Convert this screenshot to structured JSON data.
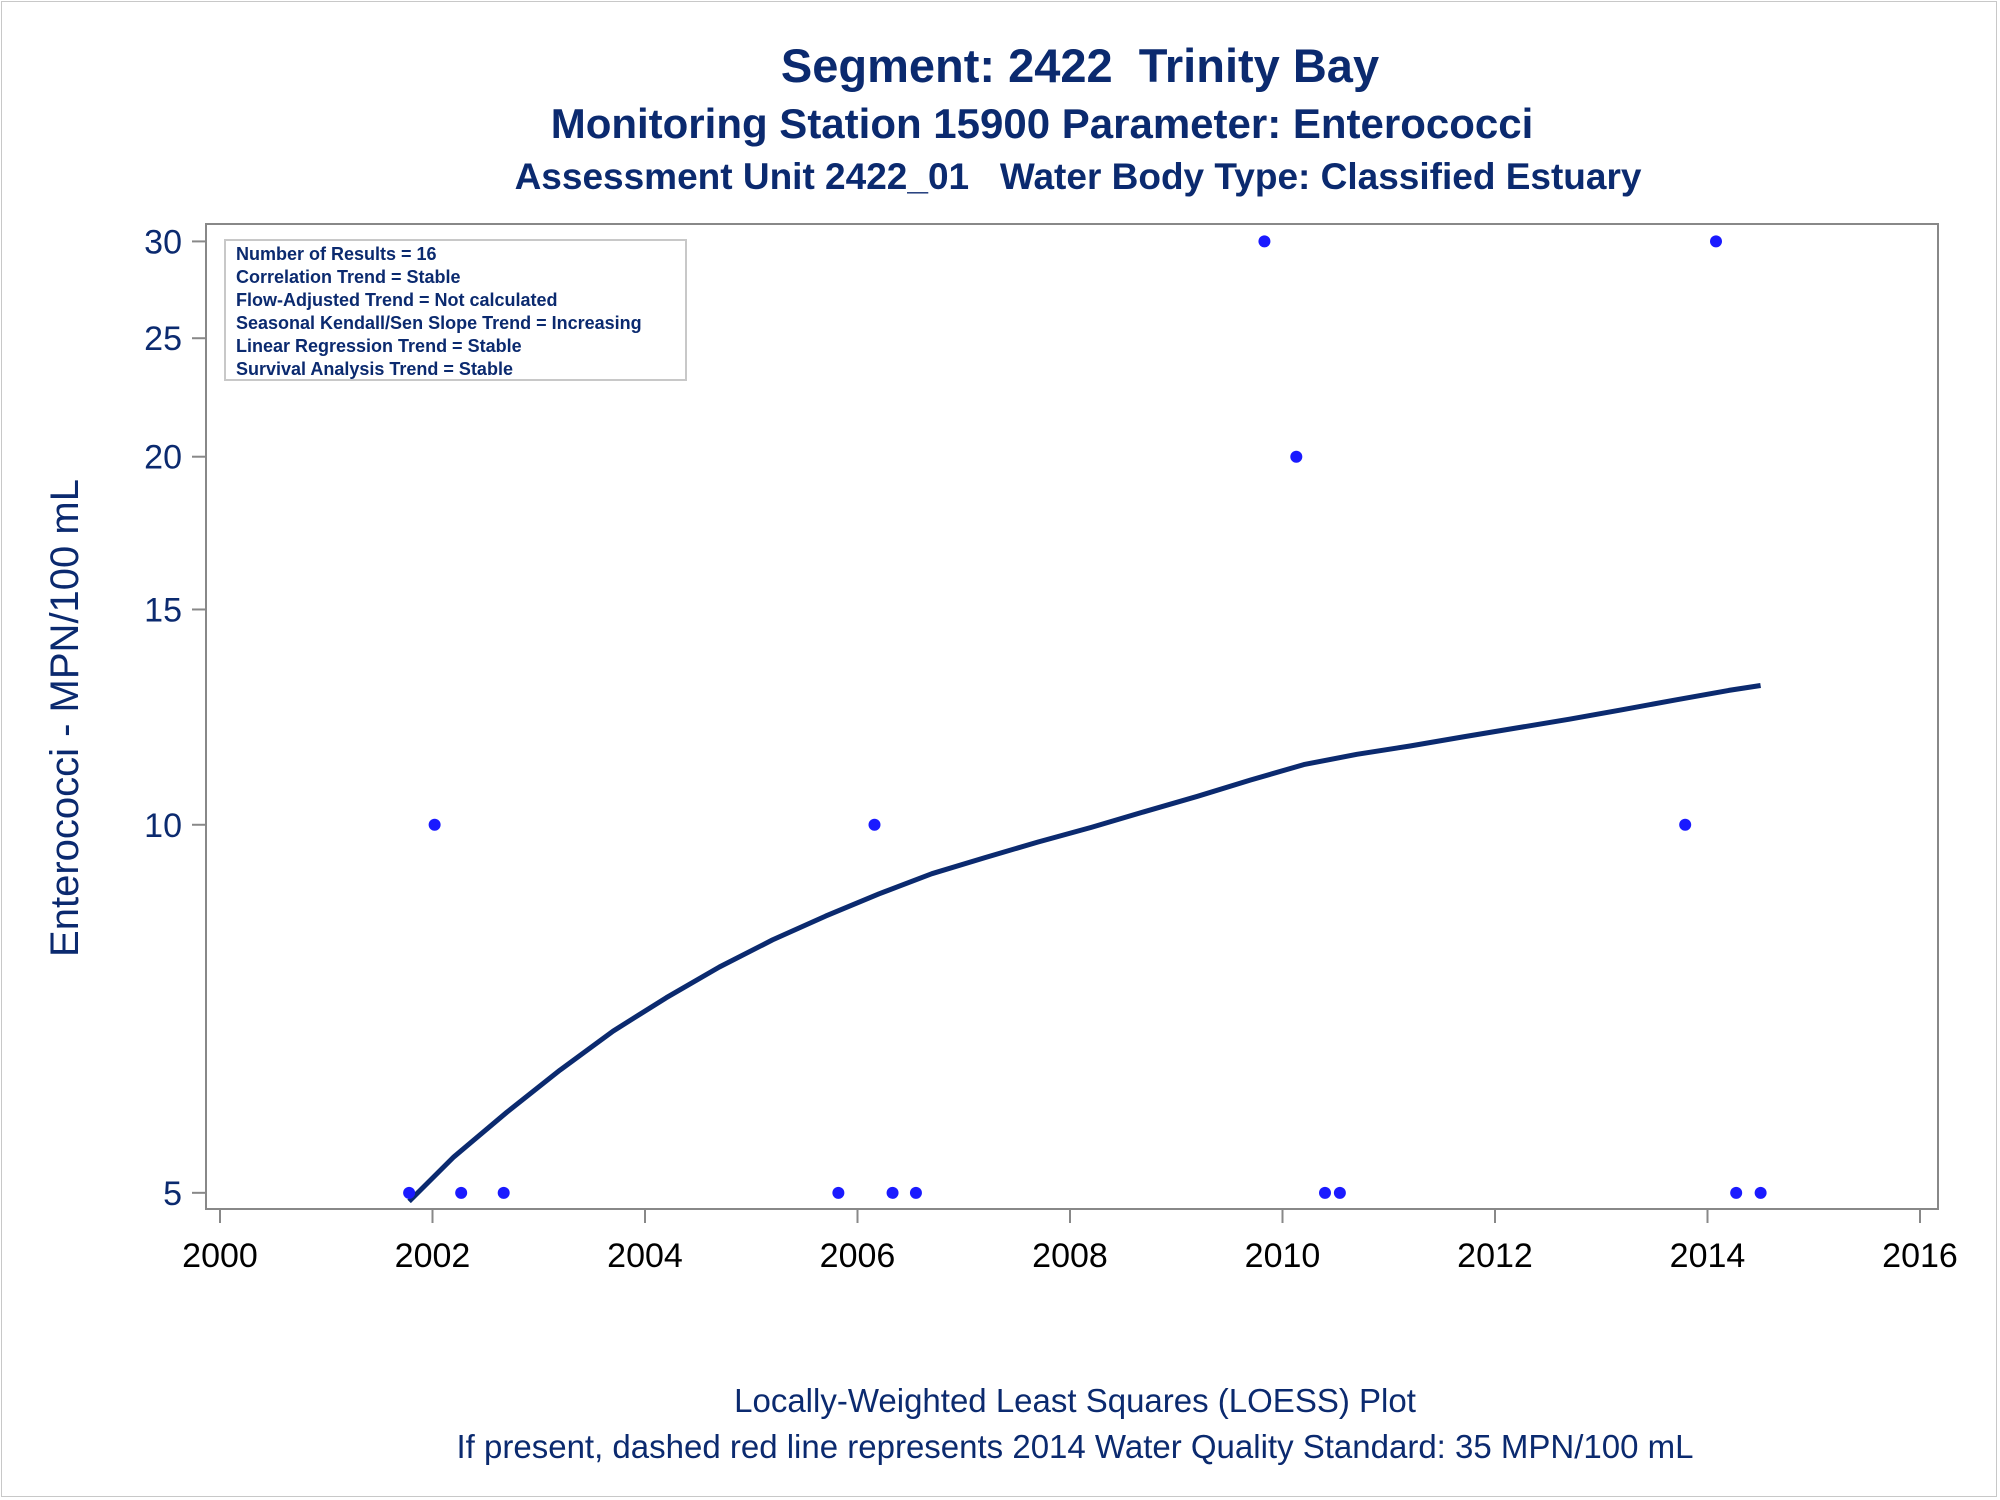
{
  "titles": {
    "main": "Segment: 2422  Trinity Bay",
    "sub1": "Monitoring Station 15900 Parameter: Enterococci",
    "sub2": "Assessment Unit 2422_01   Water Body Type: Classified Estuary"
  },
  "footnotes": {
    "line1": "Locally-Weighted Least Squares (LOESS) Plot",
    "line2": "If present, dashed red line represents 2014 Water Quality Standard: 35 MPN/100 mL"
  },
  "stats_box": {
    "lines": [
      "Number of Results = 16",
      "Correlation Trend = Stable",
      "Flow-Adjusted Trend = Not calculated",
      "Seasonal Kendall/Sen Slope Trend = Increasing",
      "Linear Regression Trend = Stable",
      "Survival Analysis Trend = Stable"
    ]
  },
  "colors": {
    "text": "#0b2a6f",
    "points": "#1a1aff",
    "loess_line": "#0b2a6f",
    "axis": "#888888"
  },
  "chart_data": {
    "type": "scatter",
    "xlabel": "",
    "ylabel": "Enterococci - MPN/100 mL",
    "x_scale": "linear (years)",
    "y_scale": "log",
    "xlim": [
      2000,
      2016
    ],
    "ylim": [
      4.85,
      31
    ],
    "x_ticks": [
      2000,
      2002,
      2004,
      2006,
      2008,
      2010,
      2012,
      2014,
      2016
    ],
    "y_ticks": [
      5,
      10,
      15,
      20,
      25,
      30
    ],
    "grid": false,
    "series": [
      {
        "kind": "points",
        "x": [
          2001.78,
          2002.02,
          2002.27,
          2002.67,
          2005.82,
          2006.16,
          2006.33,
          2006.55,
          2009.83,
          2010.13,
          2010.4,
          2010.54,
          2013.79,
          2014.08,
          2014.27,
          2014.5
        ],
        "y": [
          5,
          10,
          5,
          5,
          5,
          10,
          5,
          5,
          30,
          20,
          5,
          5,
          10,
          30,
          5,
          5
        ]
      },
      {
        "kind": "loess",
        "x": [
          2001.78,
          2002.2,
          2002.7,
          2003.2,
          2003.7,
          2004.2,
          2004.7,
          2005.2,
          2005.7,
          2006.2,
          2006.7,
          2007.2,
          2007.7,
          2008.2,
          2008.7,
          2009.2,
          2009.7,
          2010.2,
          2010.7,
          2011.2,
          2011.7,
          2012.2,
          2012.7,
          2013.2,
          2013.7,
          2014.2,
          2014.5
        ],
        "y": [
          4.92,
          5.35,
          5.82,
          6.3,
          6.78,
          7.22,
          7.65,
          8.05,
          8.42,
          8.78,
          9.12,
          9.4,
          9.68,
          9.95,
          10.25,
          10.55,
          10.88,
          11.2,
          11.42,
          11.6,
          11.8,
          12.0,
          12.2,
          12.42,
          12.65,
          12.88,
          13.0
        ]
      }
    ]
  }
}
